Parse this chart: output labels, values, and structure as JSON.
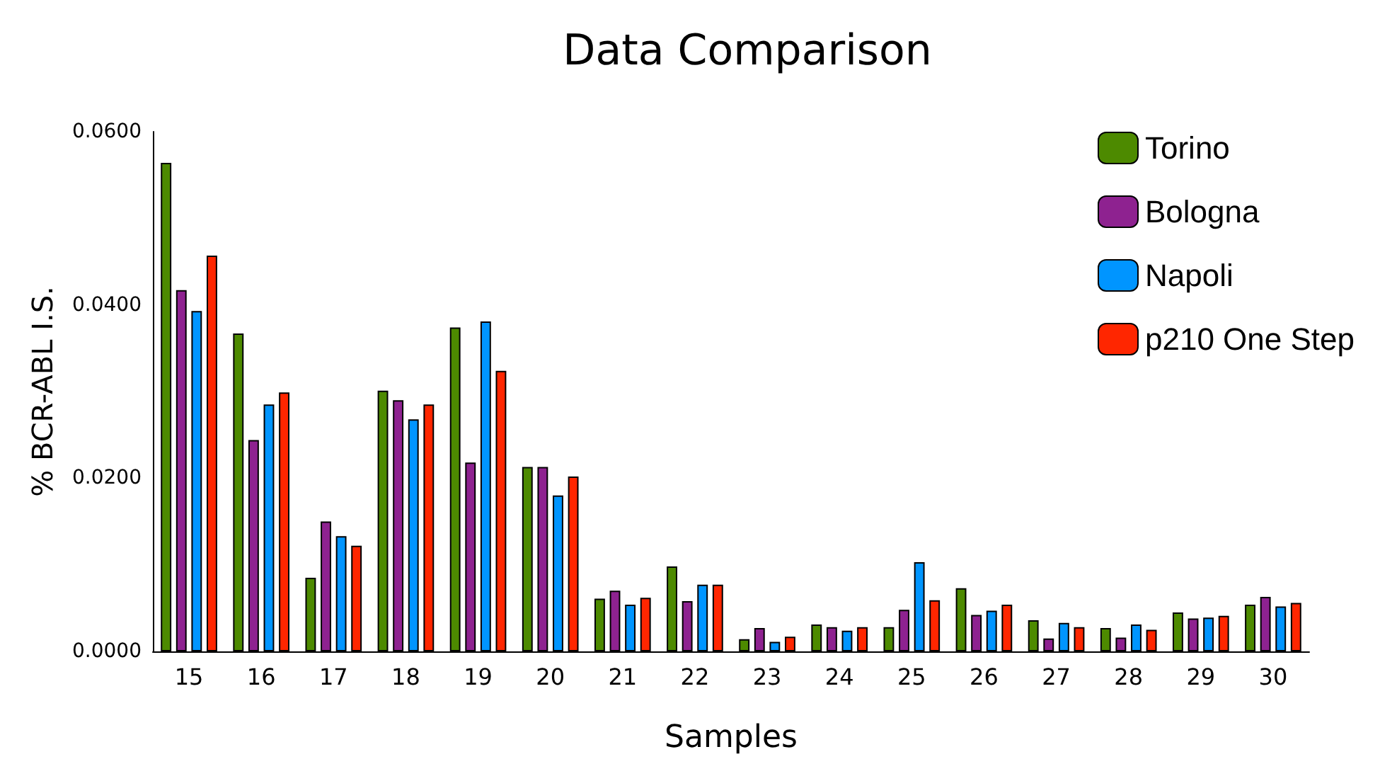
{
  "chart_data": {
    "type": "bar",
    "title": "Data Comparison",
    "xlabel": "Samples",
    "ylabel": "% BCR-ABL I.S.",
    "categories": [
      "15",
      "16",
      "17",
      "18",
      "19",
      "20",
      "21",
      "22",
      "23",
      "24",
      "25",
      "26",
      "27",
      "28",
      "29",
      "30"
    ],
    "series": [
      {
        "name": "Torino",
        "color": "#4d8a00",
        "values": [
          0.0564,
          0.0367,
          0.0085,
          0.0301,
          0.0374,
          0.0213,
          0.0061,
          0.0098,
          0.0014,
          0.0031,
          0.0028,
          0.0073,
          0.0036,
          0.0027,
          0.0045,
          0.0054
        ]
      },
      {
        "name": "Bologna",
        "color": "#8e2290",
        "values": [
          0.0417,
          0.0244,
          0.015,
          0.029,
          0.0218,
          0.0213,
          0.007,
          0.0058,
          0.0027,
          0.0028,
          0.0048,
          0.0042,
          0.0015,
          0.0016,
          0.0038,
          0.0063
        ]
      },
      {
        "name": "Napoli",
        "color": "#0095ff",
        "values": [
          0.0393,
          0.0285,
          0.0133,
          0.0268,
          0.0381,
          0.018,
          0.0054,
          0.0077,
          0.0011,
          0.0024,
          0.0103,
          0.0047,
          0.0033,
          0.0031,
          0.0039,
          0.0052
        ]
      },
      {
        "name": "p210 One Step",
        "color": "#ff2600",
        "values": [
          0.0457,
          0.0299,
          0.0122,
          0.0285,
          0.0324,
          0.0202,
          0.0062,
          0.0077,
          0.0017,
          0.0028,
          0.0059,
          0.0054,
          0.0028,
          0.0025,
          0.0041,
          0.0056
        ]
      }
    ],
    "ylim": [
      0,
      0.06
    ],
    "yticks": [
      {
        "value": 0,
        "label": "0.0000"
      },
      {
        "value": 0.02,
        "label": "0.0200"
      },
      {
        "value": 0.04,
        "label": "0.0400"
      },
      {
        "value": 0.06,
        "label": "0.0600"
      }
    ],
    "grid": false,
    "legend": "top right"
  }
}
